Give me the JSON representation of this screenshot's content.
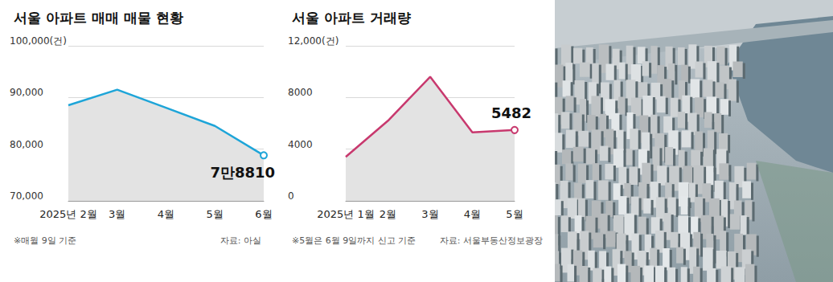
{
  "chart_data": [
    {
      "type": "line",
      "title": "서울 아파트 매매 매물 현황",
      "note": "※매월 9일 기준",
      "source": "자료: 아실",
      "categories": [
        "2025년 2월",
        "3월",
        "4월",
        "5월",
        "6월"
      ],
      "values": [
        88500,
        91500,
        88000,
        84500,
        78810
      ],
      "value_labels": [
        null,
        null,
        null,
        null,
        "7만8810"
      ],
      "color": "#1ea5d8",
      "marker": "circle",
      "ylim": [
        70000,
        100000
      ],
      "yticks": [
        {
          "value": 70000,
          "label": "70,000"
        },
        {
          "value": 80000,
          "label": "80,000"
        },
        {
          "value": 90000,
          "label": "90,000"
        },
        {
          "value": 100000,
          "label": "100,000(건)"
        }
      ],
      "grid": true
    },
    {
      "type": "line",
      "title": "서울 아파트 거래량",
      "note": "※5월은 6월 9일까지 신고 기준",
      "source": "자료: 서울부동산정보광장",
      "categories": [
        "2025년 1월",
        "2월",
        "3월",
        "4월",
        "5월"
      ],
      "values": [
        3400,
        6200,
        9600,
        5300,
        5482
      ],
      "value_labels": [
        null,
        null,
        null,
        null,
        "5482"
      ],
      "color": "#c8396e",
      "marker": "circle",
      "ylim": [
        0,
        12000
      ],
      "yticks": [
        0,
        4000,
        8000,
        {
          "value": 12000,
          "label": "12,000(건)"
        }
      ],
      "grid": true
    }
  ]
}
